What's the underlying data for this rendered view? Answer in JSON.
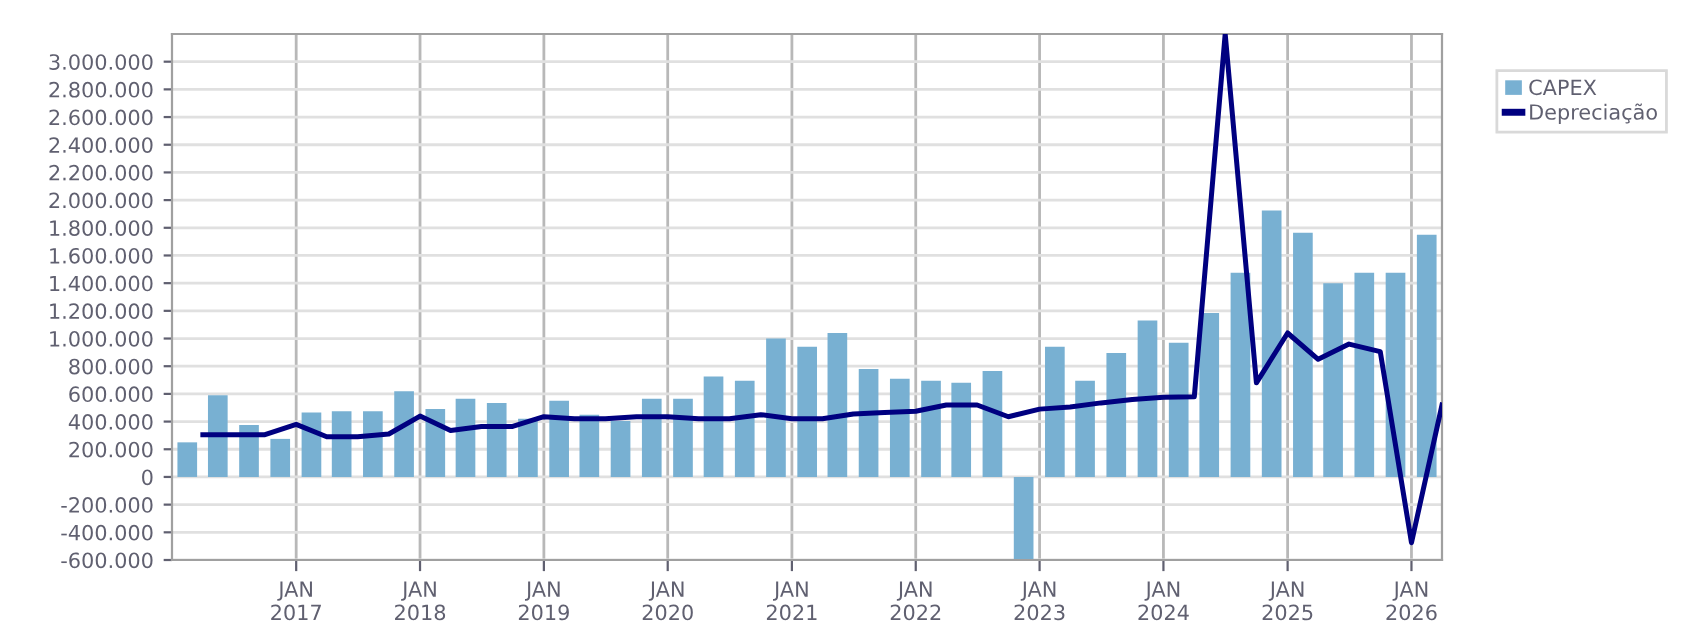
{
  "chart_data": {
    "type": "bar",
    "xlim": [
      "2016-01-01",
      "2026-04-01"
    ],
    "ylim": [
      -600000,
      3200000
    ],
    "yticks": [
      {
        "value": -600000,
        "label": "-600.000"
      },
      {
        "value": -400000,
        "label": "-400.000"
      },
      {
        "value": -200000,
        "label": "-200.000"
      },
      {
        "value": 0,
        "label": "0"
      },
      {
        "value": 200000,
        "label": "200.000"
      },
      {
        "value": 400000,
        "label": "400.000"
      },
      {
        "value": 600000,
        "label": "600.000"
      },
      {
        "value": 800000,
        "label": "800.000"
      },
      {
        "value": 1000000,
        "label": "1.000.000"
      },
      {
        "value": 1200000,
        "label": "1.200.000"
      },
      {
        "value": 1400000,
        "label": "1.400.000"
      },
      {
        "value": 1600000,
        "label": "1.600.000"
      },
      {
        "value": 1800000,
        "label": "1.800.000"
      },
      {
        "value": 2000000,
        "label": "2.000.000"
      },
      {
        "value": 2200000,
        "label": "2.200.000"
      },
      {
        "value": 2400000,
        "label": "2.400.000"
      },
      {
        "value": 2600000,
        "label": "2.600.000"
      },
      {
        "value": 2800000,
        "label": "2.800.000"
      },
      {
        "value": 3000000,
        "label": "3.000.000"
      }
    ],
    "xticks": [
      {
        "value": "2017-01-01",
        "label": "JAN\n2017"
      },
      {
        "value": "2018-01-01",
        "label": "JAN\n2018"
      },
      {
        "value": "2019-01-01",
        "label": "JAN\n2019"
      },
      {
        "value": "2020-01-01",
        "label": "JAN\n2020"
      },
      {
        "value": "2021-01-01",
        "label": "JAN\n2021"
      },
      {
        "value": "2022-01-01",
        "label": "JAN\n2022"
      },
      {
        "value": "2023-01-01",
        "label": "JAN\n2023"
      },
      {
        "value": "2024-01-01",
        "label": "JAN\n2024"
      },
      {
        "value": "2025-01-01",
        "label": "JAN\n2025"
      },
      {
        "value": "2026-01-01",
        "label": "JAN\n2026"
      }
    ],
    "grid": true,
    "legend": "right",
    "series": [
      {
        "name": "CAPEX",
        "color": "#78b0d2",
        "x": [
          "2016-02-15",
          "2016-05-15",
          "2016-08-15",
          "2016-11-15",
          "2017-02-15",
          "2017-05-15",
          "2017-08-15",
          "2017-11-15",
          "2018-02-15",
          "2018-05-15",
          "2018-08-15",
          "2018-11-15",
          "2019-02-15",
          "2019-05-15",
          "2019-08-15",
          "2019-11-15",
          "2020-02-15",
          "2020-05-15",
          "2020-08-15",
          "2020-11-15",
          "2021-02-15",
          "2021-05-15",
          "2021-08-15",
          "2021-11-15",
          "2022-02-15",
          "2022-05-15",
          "2022-08-15",
          "2022-11-15",
          "2023-02-15",
          "2023-05-15",
          "2023-08-15",
          "2023-11-15",
          "2024-02-15",
          "2024-05-15",
          "2024-08-15",
          "2024-11-15",
          "2025-02-15",
          "2025-05-15",
          "2025-08-15",
          "2025-11-15",
          "2026-02-15"
        ],
        "values": [
          250000,
          590000,
          375000,
          275000,
          465000,
          475000,
          475000,
          620000,
          490000,
          565000,
          535000,
          420000,
          550000,
          450000,
          405000,
          565000,
          565000,
          725000,
          695000,
          1000000,
          940000,
          1040000,
          780000,
          710000,
          695000,
          680000,
          765000,
          -600000,
          940000,
          695000,
          895000,
          1130000,
          970000,
          1185000,
          1475000,
          1925000,
          1765000,
          1400000,
          1475000,
          1475000,
          1750000
        ]
      },
      {
        "name": "Depreciação",
        "type": "line",
        "color": "#000080",
        "x": [
          "2016-04-01",
          "2016-07-01",
          "2016-10-01",
          "2017-01-01",
          "2017-04-01",
          "2017-07-01",
          "2017-10-01",
          "2018-01-01",
          "2018-04-01",
          "2018-07-01",
          "2018-10-01",
          "2019-01-01",
          "2019-04-01",
          "2019-07-01",
          "2019-10-01",
          "2020-01-01",
          "2020-04-01",
          "2020-07-01",
          "2020-10-01",
          "2021-01-01",
          "2021-04-01",
          "2021-07-01",
          "2021-10-01",
          "2022-01-01",
          "2022-04-01",
          "2022-07-01",
          "2022-10-01",
          "2023-01-01",
          "2023-04-01",
          "2023-07-01",
          "2023-10-01",
          "2024-01-01",
          "2024-04-01",
          "2024-07-01",
          "2024-10-01",
          "2025-01-01",
          "2025-04-01",
          "2025-07-01",
          "2025-10-01",
          "2026-01-01",
          "2026-04-01"
        ],
        "values": [
          305000,
          305000,
          305000,
          380000,
          290000,
          290000,
          310000,
          440000,
          335000,
          365000,
          365000,
          435000,
          420000,
          420000,
          435000,
          435000,
          420000,
          420000,
          450000,
          420000,
          420000,
          455000,
          465000,
          475000,
          520000,
          520000,
          435000,
          490000,
          505000,
          535000,
          560000,
          575000,
          580000,
          3200000,
          680000,
          1040000,
          850000,
          960000,
          905000,
          -475000,
          520000
        ]
      }
    ]
  }
}
